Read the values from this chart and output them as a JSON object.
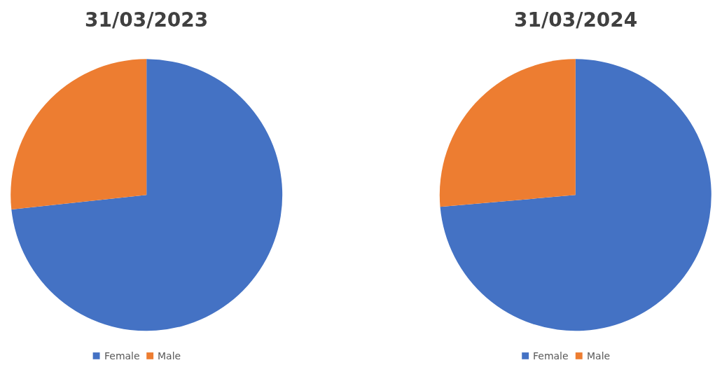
{
  "chart_data": [
    {
      "type": "pie",
      "title": "31/03/2023",
      "categories": [
        "Female",
        "Male"
      ],
      "values": [
        73.3,
        26.7
      ],
      "colors": [
        "#4472c4",
        "#ed7d31"
      ],
      "legend": "bottom"
    },
    {
      "type": "pie",
      "title": "31/03/2024",
      "categories": [
        "Female",
        "Male"
      ],
      "values": [
        73.6,
        26.4
      ],
      "colors": [
        "#4472c4",
        "#ed7d31"
      ],
      "legend": "bottom"
    }
  ]
}
